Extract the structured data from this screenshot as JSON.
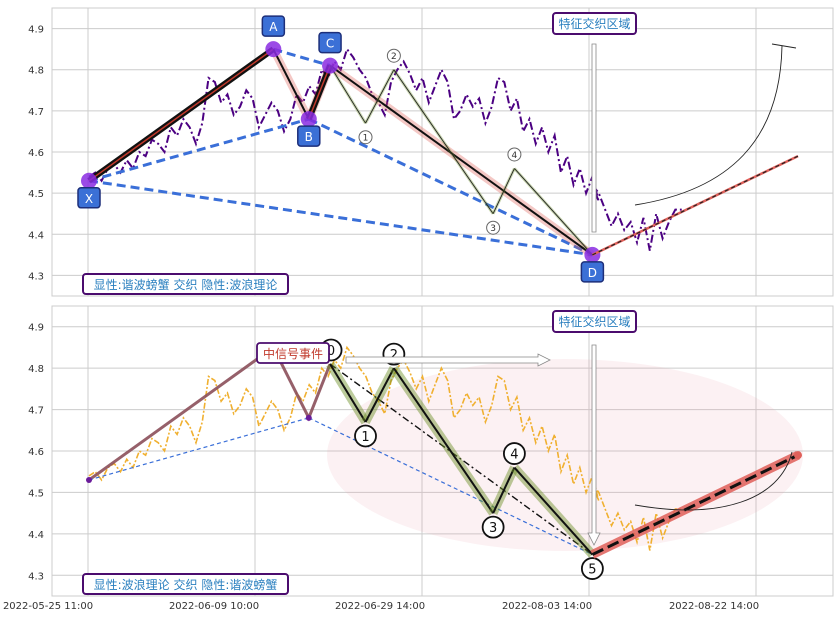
{
  "x_axis": {
    "tick_labels": [
      "2022-05-25 11:00",
      "2022-06-09 10:00",
      "2022-06-29 14:00",
      "2022-08-03 14:00",
      "2022-08-22 14:00"
    ]
  },
  "colors": {
    "purple": "#4b0082",
    "orange": "#f0b030",
    "blue": "#3a6fd8",
    "red": "#e0605a",
    "grid": "#cccccc",
    "label_text": "#2a7fbf",
    "label_border": "#4b0c6e"
  },
  "panels": [
    {
      "annotation_top": "特征交织区域",
      "annotation_bottom": "显性:谐波螃蟹 交织 隐性:波浪理论",
      "point_labels": [
        "X",
        "A",
        "B",
        "C",
        "D"
      ],
      "wave_labels": [
        "1",
        "2",
        "3",
        "4"
      ]
    },
    {
      "annotation_top": "特征交织区域",
      "annotation_bottom": "显性:波浪理论 交织 隐性:谐波螃蟹",
      "signal_label": "中信号事件",
      "wave_labels": [
        "0",
        "1",
        "2",
        "3",
        "4",
        "5"
      ]
    }
  ],
  "chart_data": [
    {
      "type": "line",
      "ylim": [
        4.25,
        4.95
      ],
      "yticks": [
        "4.3",
        "4.4",
        "4.5",
        "4.6",
        "4.7",
        "4.8",
        "4.9"
      ],
      "xlim": [
        0,
        105
      ],
      "price_series": [
        4.54,
        4.55,
        4.53,
        4.56,
        4.57,
        4.55,
        4.58,
        4.56,
        4.6,
        4.59,
        4.63,
        4.62,
        4.6,
        4.66,
        4.64,
        4.68,
        4.66,
        4.62,
        4.67,
        4.78,
        4.77,
        4.72,
        4.74,
        4.69,
        4.71,
        4.75,
        4.73,
        4.66,
        4.69,
        4.72,
        4.7,
        4.65,
        4.68,
        4.74,
        4.72,
        4.76,
        4.74,
        4.8,
        4.78,
        4.82,
        4.8,
        4.85,
        4.83,
        4.8,
        4.78,
        4.74,
        4.72,
        4.69,
        4.77,
        4.8,
        4.82,
        4.79,
        4.75,
        4.78,
        4.72,
        4.76,
        4.8,
        4.77,
        4.68,
        4.7,
        4.74,
        4.71,
        4.73,
        4.67,
        4.71,
        4.78,
        4.77,
        4.7,
        4.73,
        4.65,
        4.68,
        4.62,
        4.66,
        4.6,
        4.64,
        4.55,
        4.59,
        4.52,
        4.56,
        4.5,
        4.54,
        4.48,
        4.52,
        4.5,
        4.46,
        4.42,
        4.45,
        4.41,
        4.43,
        4.38,
        4.44,
        4.36,
        4.45,
        4.39,
        4.43,
        4.46,
        4.46
      ],
      "harmonic_points": [
        {
          "label": "X",
          "x": 0,
          "y": 4.53
        },
        {
          "label": "A",
          "x": 26,
          "y": 4.85
        },
        {
          "label": "B",
          "x": 31,
          "y": 4.68
        },
        {
          "label": "C",
          "x": 34,
          "y": 4.81
        },
        {
          "label": "D",
          "x": 71,
          "y": 4.35
        }
      ],
      "wave_points": [
        {
          "label": "",
          "x": 34,
          "y": 4.81
        },
        {
          "label": "1",
          "x": 39,
          "y": 4.67
        },
        {
          "label": "2",
          "x": 43,
          "y": 4.8
        },
        {
          "label": "3",
          "x": 57,
          "y": 4.45
        },
        {
          "label": "4",
          "x": 60,
          "y": 4.56
        },
        {
          "label": "5",
          "x": 71,
          "y": 4.35
        }
      ],
      "projection": {
        "from": {
          "x": 71,
          "y": 4.35
        },
        "to": {
          "x": 100,
          "y": 4.59
        }
      }
    },
    {
      "type": "line",
      "ylim": [
        4.25,
        4.95
      ],
      "yticks": [
        "4.3",
        "4.4",
        "4.5",
        "4.6",
        "4.7",
        "4.8",
        "4.9"
      ],
      "xlim": [
        0,
        105
      ],
      "price_series": [
        4.54,
        4.55,
        4.53,
        4.56,
        4.57,
        4.55,
        4.58,
        4.56,
        4.6,
        4.59,
        4.63,
        4.62,
        4.6,
        4.66,
        4.64,
        4.68,
        4.66,
        4.62,
        4.67,
        4.78,
        4.77,
        4.72,
        4.74,
        4.69,
        4.71,
        4.75,
        4.73,
        4.66,
        4.69,
        4.72,
        4.7,
        4.65,
        4.68,
        4.74,
        4.72,
        4.76,
        4.74,
        4.8,
        4.78,
        4.82,
        4.8,
        4.85,
        4.83,
        4.8,
        4.78,
        4.74,
        4.72,
        4.69,
        4.77,
        4.8,
        4.82,
        4.79,
        4.75,
        4.78,
        4.72,
        4.76,
        4.8,
        4.77,
        4.68,
        4.7,
        4.74,
        4.71,
        4.73,
        4.67,
        4.71,
        4.78,
        4.77,
        4.7,
        4.73,
        4.65,
        4.68,
        4.62,
        4.66,
        4.6,
        4.64,
        4.55,
        4.59,
        4.52,
        4.56,
        4.5,
        4.54,
        4.48,
        4.52,
        4.5,
        4.46,
        4.42,
        4.45,
        4.41,
        4.43,
        4.38,
        4.44,
        4.36,
        4.45,
        4.39,
        4.43,
        4.46,
        4.46
      ],
      "harmonic_points": [
        {
          "label": "",
          "x": 0,
          "y": 4.53
        },
        {
          "label": "",
          "x": 26,
          "y": 4.85
        },
        {
          "label": "",
          "x": 31,
          "y": 4.68
        },
        {
          "label": "",
          "x": 34,
          "y": 4.81
        },
        {
          "label": "",
          "x": 71,
          "y": 4.35
        }
      ],
      "wave_points": [
        {
          "label": "0",
          "x": 34,
          "y": 4.81
        },
        {
          "label": "1",
          "x": 39,
          "y": 4.67
        },
        {
          "label": "2",
          "x": 43,
          "y": 4.8
        },
        {
          "label": "3",
          "x": 57,
          "y": 4.45
        },
        {
          "label": "4",
          "x": 60,
          "y": 4.56
        },
        {
          "label": "5",
          "x": 71,
          "y": 4.35
        }
      ],
      "projection": {
        "from": {
          "x": 71,
          "y": 4.35
        },
        "to": {
          "x": 100,
          "y": 4.59
        }
      }
    }
  ]
}
